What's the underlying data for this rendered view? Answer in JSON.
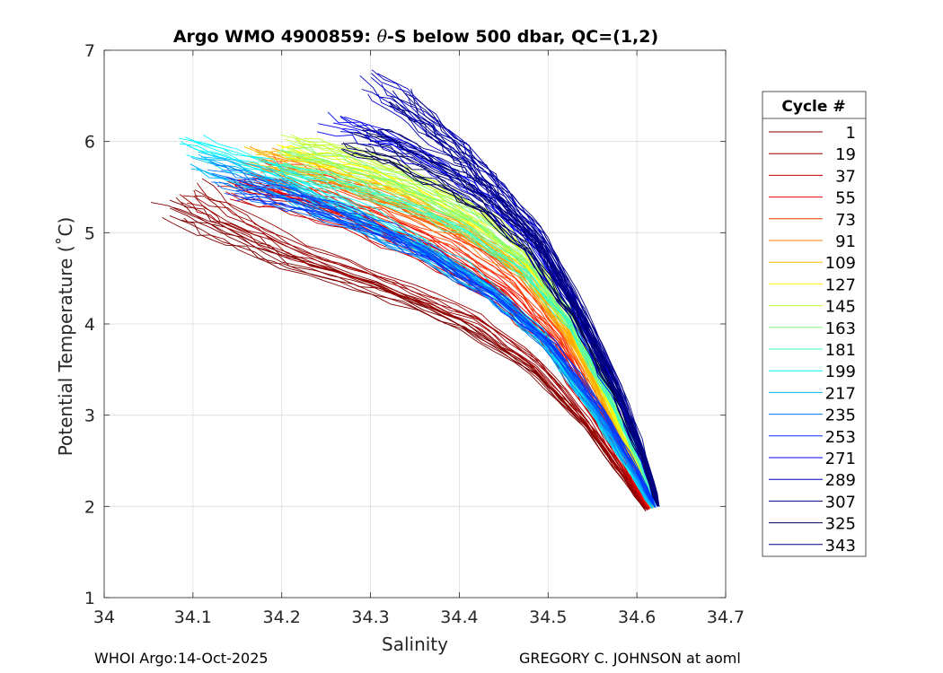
{
  "chart_data": {
    "type": "line",
    "title_prefix": "Argo WMO 4900859: ",
    "title_theta": "θ",
    "title_suffix": "-S below 500 dbar,  QC=(1,2)",
    "xlabel": "Salinity",
    "ylabel": "Potential Temperature (˚C)",
    "xlim": [
      34.0,
      34.7
    ],
    "ylim": [
      1,
      7
    ],
    "xticks": [
      34.0,
      34.1,
      34.2,
      34.3,
      34.4,
      34.5,
      34.6,
      34.7
    ],
    "xtick_labels": [
      "34",
      "34.1",
      "34.2",
      "34.3",
      "34.4",
      "34.5",
      "34.6",
      "34.7"
    ],
    "yticks": [
      1,
      2,
      3,
      4,
      5,
      6,
      7
    ],
    "ytick_labels": [
      "1",
      "2",
      "3",
      "4",
      "5",
      "6",
      "7"
    ],
    "grid": true,
    "legend": {
      "title": "Cycle #",
      "placement": "outside-right",
      "entries": [
        "1",
        "19",
        "37",
        "55",
        "73",
        "91",
        "109",
        "127",
        "145",
        "163",
        "181",
        "199",
        "217",
        "235",
        "253",
        "271",
        "289",
        "307",
        "325",
        "343"
      ],
      "colors": [
        "#800000",
        "#9a0000",
        "#c80000",
        "#f20000",
        "#ff3a00",
        "#ff7d00",
        "#ffbe00",
        "#fffa00",
        "#c4ff3a",
        "#85ff78",
        "#42ffbd",
        "#00f7ff",
        "#00b8ff",
        "#0078ff",
        "#0036ff",
        "#0000f5",
        "#0000c0",
        "#000088",
        "#00005a",
        "#000080"
      ]
    },
    "series": [
      {
        "name": "1",
        "s": [
          34.07,
          34.13,
          34.2,
          34.3,
          34.4,
          34.48,
          34.54,
          34.585,
          34.61
        ],
        "t": [
          5.25,
          5.0,
          4.7,
          4.4,
          4.0,
          3.5,
          2.9,
          2.3,
          1.95
        ]
      },
      {
        "name": "19",
        "s": [
          34.1,
          34.15,
          34.22,
          34.32,
          34.42,
          34.49,
          34.545,
          34.588,
          34.612
        ],
        "t": [
          5.45,
          5.15,
          4.8,
          4.45,
          4.05,
          3.55,
          2.92,
          2.32,
          1.96
        ]
      },
      {
        "name": "37",
        "s": [
          34.14,
          34.2,
          34.28,
          34.36,
          34.44,
          34.5,
          34.55,
          34.59,
          34.613
        ],
        "t": [
          5.5,
          5.35,
          5.1,
          4.75,
          4.3,
          3.75,
          3.0,
          2.35,
          1.97
        ]
      },
      {
        "name": "55",
        "s": [
          34.16,
          34.22,
          34.3,
          34.38,
          34.45,
          34.51,
          34.555,
          34.593,
          34.614
        ],
        "t": [
          5.6,
          5.45,
          5.2,
          4.85,
          4.4,
          3.8,
          3.05,
          2.38,
          1.97
        ]
      },
      {
        "name": "73",
        "s": [
          34.17,
          34.24,
          34.31,
          34.39,
          34.46,
          34.515,
          34.558,
          34.595,
          34.615
        ],
        "t": [
          5.75,
          5.55,
          5.3,
          4.95,
          4.5,
          3.85,
          3.08,
          2.4,
          1.98
        ]
      },
      {
        "name": "91",
        "s": [
          34.18,
          34.25,
          34.32,
          34.4,
          34.47,
          34.52,
          34.562,
          34.597,
          34.616
        ],
        "t": [
          5.8,
          5.6,
          5.35,
          5.0,
          4.55,
          3.9,
          3.1,
          2.42,
          1.98
        ]
      },
      {
        "name": "109",
        "s": [
          34.17,
          34.24,
          34.32,
          34.4,
          34.47,
          34.522,
          34.565,
          34.599,
          34.617
        ],
        "t": [
          5.85,
          5.7,
          5.45,
          5.1,
          4.6,
          3.92,
          3.12,
          2.43,
          1.98
        ]
      },
      {
        "name": "127",
        "s": [
          34.2,
          34.27,
          34.34,
          34.41,
          34.475,
          34.525,
          34.567,
          34.6,
          34.618
        ],
        "t": [
          5.9,
          5.75,
          5.5,
          5.15,
          4.65,
          3.95,
          3.14,
          2.44,
          1.99
        ]
      },
      {
        "name": "145",
        "s": [
          34.21,
          34.28,
          34.35,
          34.42,
          34.48,
          34.528,
          34.57,
          34.602,
          34.619
        ],
        "t": [
          5.95,
          5.8,
          5.55,
          5.2,
          4.7,
          3.98,
          3.16,
          2.45,
          1.99
        ]
      },
      {
        "name": "163",
        "s": [
          34.2,
          34.27,
          34.35,
          34.42,
          34.48,
          34.53,
          34.572,
          34.604,
          34.62
        ],
        "t": [
          5.85,
          5.7,
          5.45,
          5.1,
          4.65,
          3.98,
          3.17,
          2.46,
          1.99
        ]
      },
      {
        "name": "181",
        "s": [
          34.19,
          34.26,
          34.34,
          34.41,
          34.475,
          34.528,
          34.572,
          34.605,
          34.621
        ],
        "t": [
          5.7,
          5.55,
          5.3,
          5.0,
          4.55,
          3.95,
          3.16,
          2.46,
          2.0
        ]
      },
      {
        "name": "199",
        "s": [
          34.1,
          34.18,
          34.26,
          34.34,
          34.42,
          34.49,
          34.545,
          34.59,
          34.617
        ],
        "t": [
          5.95,
          5.7,
          5.35,
          4.95,
          4.5,
          3.9,
          3.12,
          2.42,
          1.98
        ]
      },
      {
        "name": "217",
        "s": [
          34.11,
          34.19,
          34.27,
          34.35,
          34.43,
          34.495,
          34.55,
          34.594,
          34.618
        ],
        "t": [
          5.8,
          5.55,
          5.2,
          4.85,
          4.4,
          3.85,
          3.1,
          2.4,
          1.98
        ]
      },
      {
        "name": "235",
        "s": [
          34.13,
          34.2,
          34.28,
          34.36,
          34.44,
          34.5,
          34.555,
          34.597,
          34.62
        ],
        "t": [
          5.65,
          5.45,
          5.15,
          4.8,
          4.35,
          3.8,
          3.08,
          2.39,
          1.99
        ]
      },
      {
        "name": "253",
        "s": [
          34.15,
          34.22,
          34.3,
          34.37,
          34.44,
          34.505,
          34.56,
          34.6,
          34.621
        ],
        "t": [
          5.5,
          5.35,
          5.1,
          4.75,
          4.3,
          3.78,
          3.07,
          2.4,
          1.99
        ]
      },
      {
        "name": "271",
        "s": [
          34.26,
          34.32,
          34.38,
          34.43,
          34.48,
          34.53,
          34.575,
          34.607,
          34.623
        ],
        "t": [
          6.2,
          6.0,
          5.7,
          5.35,
          4.85,
          4.1,
          3.25,
          2.5,
          2.0
        ]
      },
      {
        "name": "289",
        "s": [
          34.3,
          34.35,
          34.4,
          34.44,
          34.49,
          34.535,
          34.578,
          34.609,
          34.624
        ],
        "t": [
          6.65,
          6.3,
          5.9,
          5.5,
          4.95,
          4.15,
          3.28,
          2.52,
          2.0
        ]
      },
      {
        "name": "307",
        "s": [
          34.33,
          34.37,
          34.41,
          34.45,
          34.495,
          34.538,
          34.58,
          34.61,
          34.625
        ],
        "t": [
          6.5,
          6.15,
          5.8,
          5.4,
          4.9,
          4.15,
          3.3,
          2.53,
          2.0
        ]
      },
      {
        "name": "325",
        "s": [
          34.28,
          34.33,
          34.38,
          34.43,
          34.48,
          34.53,
          34.575,
          34.608,
          34.624
        ],
        "t": [
          6.0,
          5.85,
          5.6,
          5.3,
          4.85,
          4.12,
          3.27,
          2.51,
          2.0
        ]
      },
      {
        "name": "343",
        "s": [
          34.3,
          34.35,
          34.4,
          34.44,
          34.49,
          34.534,
          34.577,
          34.609,
          34.625
        ],
        "t": [
          6.1,
          5.9,
          5.65,
          5.35,
          4.9,
          4.14,
          3.28,
          2.52,
          2.0
        ]
      }
    ]
  },
  "footer": {
    "left": "WHOI Argo:14-Oct-2025",
    "right": "GREGORY C. JOHNSON at aoml"
  }
}
